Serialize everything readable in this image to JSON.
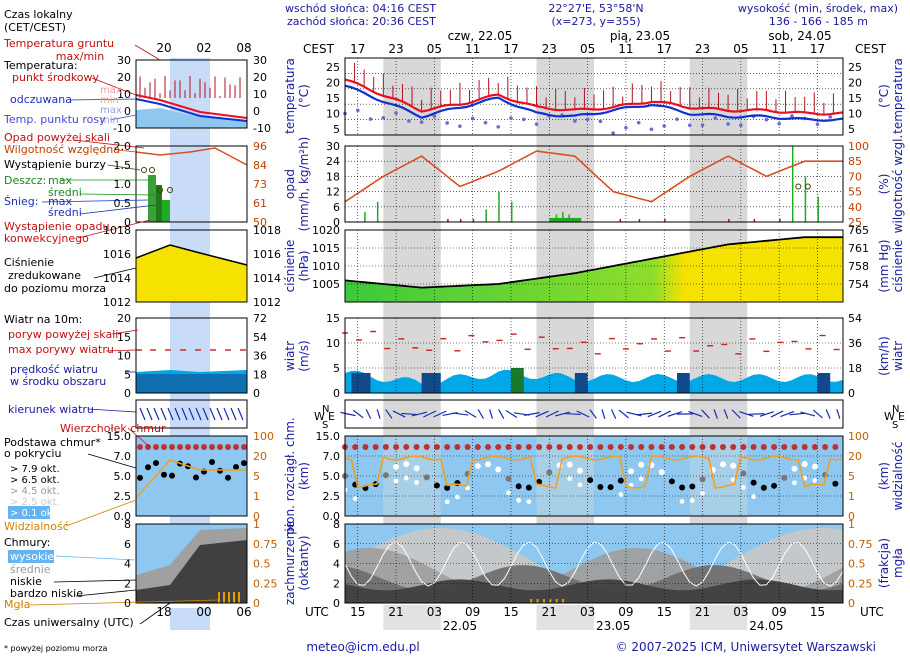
{
  "header": {
    "sunrise": "wschód słońca: 04:16 CEST",
    "sunset": "zachód słońca: 20:36 CEST",
    "coords": "22°27'E, 53°58'N",
    "grid": "(x=273, y=355)",
    "elev_label": "wysokość (min, środek, max)",
    "elev_values": "136 - 166 - 185 m"
  },
  "time": {
    "tz_top": "CEST",
    "tz_bottom": "UTC",
    "day_labels": [
      "czw, 22.05",
      "pią, 23.05",
      "sob, 24.05"
    ],
    "top_hours": [
      "17",
      "23",
      "05",
      "11",
      "17",
      "23",
      "05",
      "11",
      "17",
      "23",
      "05",
      "11",
      "17"
    ],
    "bottom_hours": [
      "15",
      "21",
      "03",
      "09",
      "15",
      "21",
      "03",
      "09",
      "15",
      "21",
      "03",
      "09",
      "15"
    ],
    "bottom_dates": [
      "22.05",
      "23.05",
      "24.05"
    ],
    "legend_top_hours": [
      "20",
      "02",
      "08"
    ],
    "legend_bottom_hours": [
      "18",
      "00",
      "06"
    ]
  },
  "legend": {
    "local_time": [
      "Czas lokalny",
      "(CET/CEST)"
    ],
    "soil_temp": [
      "Temperatura gruntu",
      "max/min"
    ],
    "temp_title": "Temperatura:",
    "temp_mid": "punkt środkowy",
    "temp_max": "max",
    "temp_min": "min",
    "temp_feel": "odczuwana",
    "temp_feel_max": "max",
    "temp_feel_min": "min",
    "dew": "Temp. punktu rosy",
    "precip_above": "Opad powyżej skali",
    "humidity": "Wilgotność względna",
    "storm": "Wystąpienie burzy",
    "rain": "Deszcz:",
    "snow": "Śnieg:",
    "max": "max",
    "mean": "średni",
    "conv": [
      "Wystąpienie opadu",
      "konwekcyjnego"
    ],
    "pressure": [
      "Ciśnienie",
      "zredukowane",
      "do poziomu morza"
    ],
    "wind10": "Wiatr na 10m:",
    "gust_above": "poryw powyżej skali",
    "gust_max": "max porywy wiatru",
    "wind_mean": [
      "prędkość wiatru",
      "w środku obszaru"
    ],
    "wind_dir": "kierunek wiatru",
    "cloud_top": "Wierzchołek chmur",
    "cloud_base": [
      "Podstawa chmur*",
      "o pokryciu"
    ],
    "okt": [
      "> 7.9 okt.",
      "> 6.5 okt.",
      "> 4.5 okt.",
      "> 2.5 okt.",
      "> 0.1 okt."
    ],
    "visibility": "Widzialność",
    "clouds": "Chmury:",
    "cloud_levels": [
      "wysokie",
      "średnie",
      "niskie",
      "bardzo niskie"
    ],
    "fog": "Mgła",
    "utc": "Czas uniwersalny (UTC)",
    "footnote": "* powyżej poziomu morza"
  },
  "footer": {
    "email": "meteo@icm.edu.pl",
    "copyright": "© 2007-2025 ICM, Uniwersytet Warszawski"
  },
  "panels": {
    "temp": {
      "ylabel_l": [
        "temperatura",
        "(°C)"
      ],
      "ylabel_r": [
        "(°C)",
        "temperatura"
      ],
      "ticks": [
        25,
        20,
        15,
        10,
        5
      ]
    },
    "precip": {
      "ylabel_l": [
        "opad",
        "(mm/h, kg/m²h)"
      ],
      "ylabel_r": [
        "(%)",
        "wilgotność wzgl."
      ],
      "ticks_l": [
        30,
        24,
        18,
        12,
        6,
        0
      ],
      "ticks_r": [
        100,
        85,
        70,
        55,
        40,
        25
      ]
    },
    "press": {
      "ylabel_l": [
        "ciśnienie",
        "(hPa)"
      ],
      "ylabel_r": [
        "(mm Hg)",
        "ciśnienie"
      ],
      "ticks_l": [
        1020,
        1015,
        1010,
        1005
      ],
      "ticks_r": [
        765,
        761,
        758,
        754
      ]
    },
    "wind": {
      "ylabel_l": [
        "wiatr",
        "(m/s)"
      ],
      "ylabel_r": [
        "(km/h)",
        "wiatr"
      ],
      "ticks_l": [
        15,
        10,
        5,
        0
      ],
      "ticks_r": [
        54,
        36,
        18,
        0
      ]
    },
    "dir": {
      "compass": [
        "N",
        "W",
        "S",
        "E"
      ]
    },
    "cloud": {
      "ylabel_l": [
        "pion. rozciągł. chm.",
        "(km)"
      ],
      "ylabel_r": [
        "(km)",
        "widzialność"
      ],
      "ticks_l": [
        "15.0",
        "7.0",
        "5.0",
        "2.5",
        "0.0"
      ],
      "ticks_r": [
        100,
        20,
        5,
        1,
        0
      ]
    },
    "cover": {
      "ylabel_l": [
        "zachmurzenie",
        "(oktanty)"
      ],
      "ylabel_r": [
        "(frakcja)",
        "mgła"
      ],
      "ticks_l": [
        8,
        6,
        4,
        2,
        0
      ],
      "ticks_r": [
        "1",
        "0.75",
        "0.5",
        "0.25",
        "0"
      ]
    }
  },
  "legend_ticks": {
    "temp_l": [
      30,
      20,
      10,
      0,
      -10
    ],
    "temp_r": [
      30,
      20,
      10,
      0,
      -10
    ],
    "prec_l": [
      "2.0",
      "1.5",
      "1.0",
      "0.5",
      "0"
    ],
    "prec_r": [
      96,
      84,
      73,
      61,
      50
    ],
    "press_l": [
      1018,
      1016,
      1014,
      1012
    ],
    "press_r": [
      1018,
      1016,
      1014,
      1012
    ],
    "wind_l": [
      20,
      15,
      10,
      5,
      0
    ],
    "wind_r": [
      72,
      54,
      36,
      18,
      0
    ],
    "cloud_l": [
      "15.0",
      "7.0",
      "5.0",
      "2.5",
      "0.0"
    ],
    "cloud_r": [
      100,
      20,
      5,
      1,
      0
    ],
    "cover_l": [
      8,
      6,
      4,
      2,
      0
    ],
    "cover_r": [
      "1",
      "0.75",
      "0.5",
      "0.25",
      "0"
    ]
  },
  "colors": {
    "temp": "#e8101f",
    "feel": "#1030d0",
    "dew": "#6a6ad8",
    "humidity": "#d85020",
    "rain": "#22aa22",
    "pressure_fill": "#f5e200",
    "pressure_fill2": "#3cc93c",
    "wind_fill": "#00a8e8",
    "gust": "#cc2020",
    "cloud_sky": "#8ec8f0",
    "night": "#d8d8d8",
    "night_band": "#c8dcf8"
  },
  "chart_data": [
    {
      "type": "line",
      "title": "temperatura (°C)",
      "x": [
        0,
        6,
        12,
        18,
        24,
        30,
        36,
        42,
        48,
        54,
        60,
        66,
        72
      ],
      "series": [
        {
          "name": "punkt środkowy",
          "values": [
            21,
            16,
            11,
            13,
            16,
            12,
            11,
            12,
            14,
            12,
            11,
            11,
            10
          ]
        },
        {
          "name": "odczuwana",
          "values": [
            19,
            14,
            9,
            12,
            15,
            10,
            9,
            11,
            13,
            10,
            9,
            9,
            8
          ]
        },
        {
          "name": "Temp. punktu rosy",
          "values": [
            11,
            10,
            9,
            8,
            8,
            9,
            10,
            6,
            7,
            8,
            8,
            9,
            9
          ]
        }
      ],
      "ylim": [
        3,
        28
      ]
    },
    {
      "type": "line",
      "title": "wilgotność wzgl. (%)",
      "x": [
        0,
        6,
        12,
        18,
        24,
        30,
        36,
        42,
        48,
        54,
        60,
        66,
        72
      ],
      "series": [
        {
          "name": "Wilgotność względna",
          "values": [
            45,
            70,
            90,
            60,
            75,
            95,
            90,
            55,
            45,
            70,
            90,
            70,
            85
          ]
        }
      ],
      "ylim": [
        25,
        100
      ]
    },
    {
      "type": "area",
      "title": "ciśnienie (hPa)",
      "x": [
        0,
        12,
        24,
        36,
        48,
        60,
        72
      ],
      "series": [
        {
          "name": "Ciśnienie",
          "values": [
            1006,
            1004,
            1005,
            1008,
            1012,
            1016,
            1018
          ]
        }
      ],
      "ylim": [
        1000,
        1020
      ]
    },
    {
      "type": "area",
      "title": "wiatr (m/s)",
      "x": [
        0,
        12,
        24,
        36,
        48,
        60,
        72
      ],
      "series": [
        {
          "name": "prędkość wiatru",
          "values": [
            4,
            2,
            4,
            3,
            3,
            3,
            3
          ]
        },
        {
          "name": "max porywy wiatru",
          "values": [
            12,
            9,
            11,
            9,
            10,
            9,
            10
          ]
        }
      ],
      "ylim": [
        0,
        15
      ]
    }
  ]
}
